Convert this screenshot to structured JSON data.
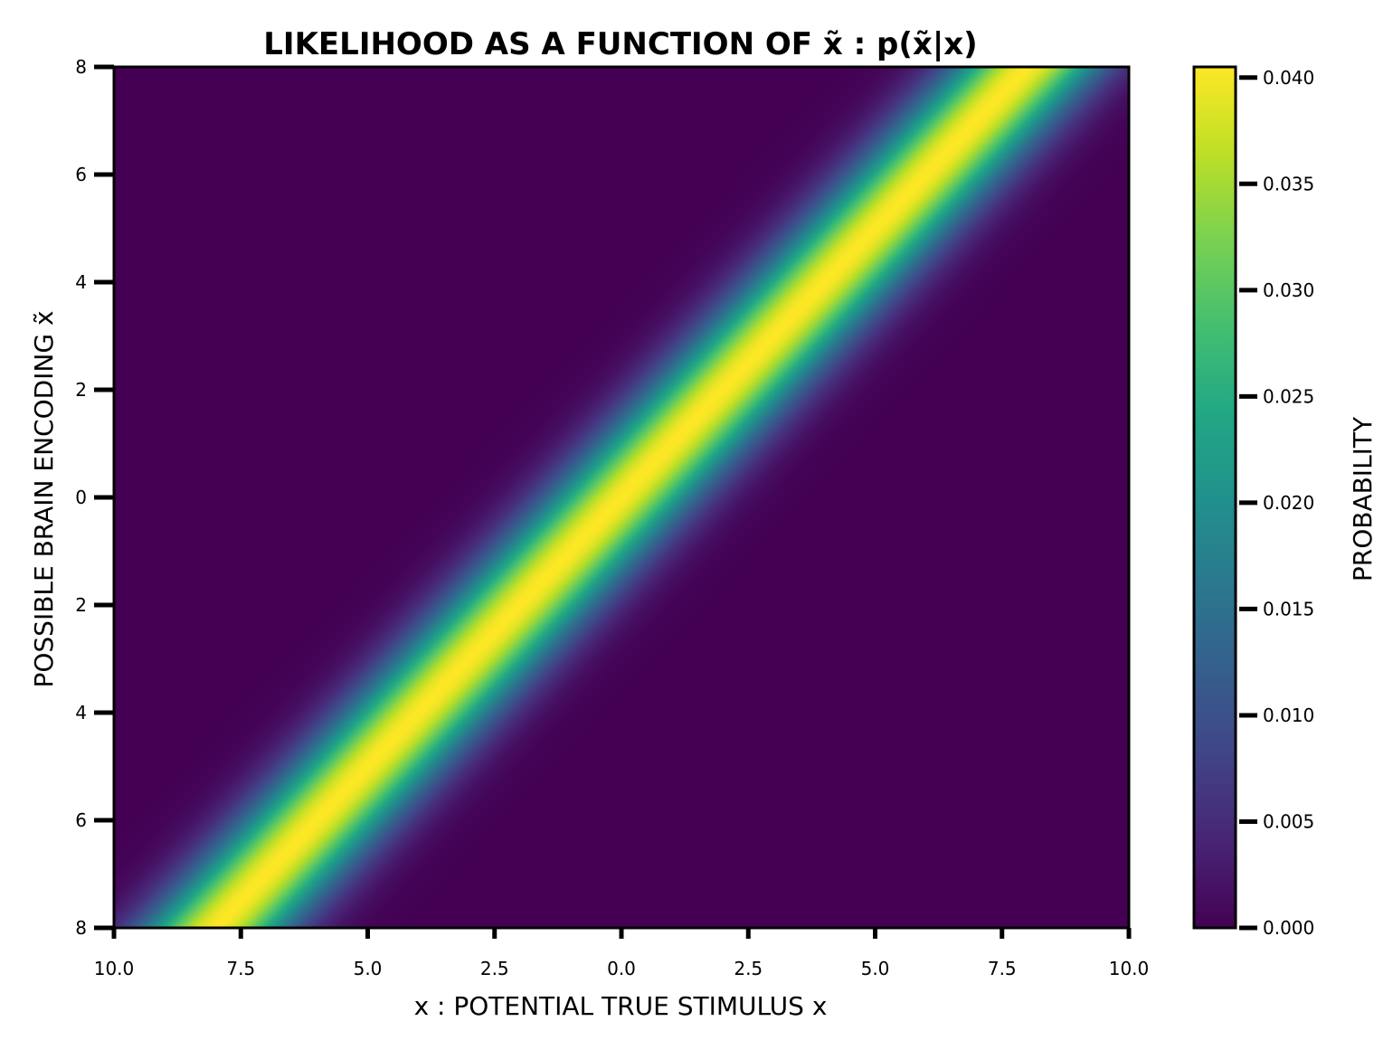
{
  "chart_data": {
    "type": "heatmap",
    "title": "LIKELIHOOD AS A FUNCTION OF x̃ : p(x̃|x)",
    "xlabel": "x : POTENTIAL TRUE STIMULUS x",
    "ylabel": "POSSIBLE BRAIN ENCODING x̃",
    "x_ticks": [
      -10.0,
      -7.5,
      -5.0,
      -2.5,
      0.0,
      2.5,
      5.0,
      7.5,
      10.0
    ],
    "x_tick_labels": [
      "10.0",
      "7.5",
      "5.0",
      "2.5",
      "0.0",
      "2.5",
      "5.0",
      "7.5",
      "10.0"
    ],
    "y_ticks": [
      8,
      6,
      4,
      2,
      0,
      -2,
      -4,
      -6,
      -8
    ],
    "y_tick_labels": [
      "8",
      "6",
      "4",
      "2",
      "0",
      "2",
      "4",
      "6",
      "8"
    ],
    "xlim": [
      -10,
      10
    ],
    "ylim": [
      -8,
      8
    ],
    "distribution": {
      "peak_along": "x̃ = x",
      "sigma": 1.0,
      "peak_value": 0.0405
    },
    "colormap": "viridis",
    "colorbar": {
      "label": "PROBABILITY",
      "range": [
        0.0,
        0.0405
      ],
      "ticks": [
        0.0,
        0.005,
        0.01,
        0.015,
        0.02,
        0.025,
        0.03,
        0.035,
        0.04
      ],
      "tick_labels": [
        "0.000",
        "0.005",
        "0.010",
        "0.015",
        "0.020",
        "0.025",
        "0.030",
        "0.035",
        "0.040"
      ]
    },
    "grid": false
  }
}
